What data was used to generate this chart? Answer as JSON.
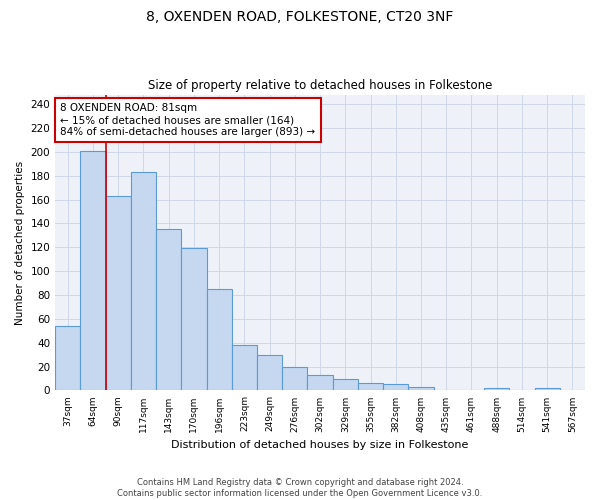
{
  "title1": "8, OXENDEN ROAD, FOLKESTONE, CT20 3NF",
  "title2": "Size of property relative to detached houses in Folkestone",
  "xlabel": "Distribution of detached houses by size in Folkestone",
  "ylabel": "Number of detached properties",
  "categories": [
    "37sqm",
    "64sqm",
    "90sqm",
    "117sqm",
    "143sqm",
    "170sqm",
    "196sqm",
    "223sqm",
    "249sqm",
    "276sqm",
    "302sqm",
    "329sqm",
    "355sqm",
    "382sqm",
    "408sqm",
    "435sqm",
    "461sqm",
    "488sqm",
    "514sqm",
    "541sqm",
    "567sqm"
  ],
  "values": [
    54,
    201,
    163,
    183,
    135,
    119,
    85,
    38,
    30,
    20,
    13,
    10,
    6,
    5,
    3,
    0,
    0,
    2,
    0,
    2,
    0
  ],
  "bar_color": "#c5d8f0",
  "bar_edge_color": "#5b9bd5",
  "vline_x": 1.5,
  "vline_color": "#cc0000",
  "annotation_text": "8 OXENDEN ROAD: 81sqm\n← 15% of detached houses are smaller (164)\n84% of semi-detached houses are larger (893) →",
  "annotation_box_color": "#ffffff",
  "annotation_box_edge": "#cc0000",
  "ylim": [
    0,
    248
  ],
  "yticks": [
    0,
    20,
    40,
    60,
    80,
    100,
    120,
    140,
    160,
    180,
    200,
    220,
    240
  ],
  "grid_color": "#d0d8e8",
  "footer1": "Contains HM Land Registry data © Crown copyright and database right 2024.",
  "footer2": "Contains public sector information licensed under the Open Government Licence v3.0.",
  "bg_color": "#eef2f8"
}
